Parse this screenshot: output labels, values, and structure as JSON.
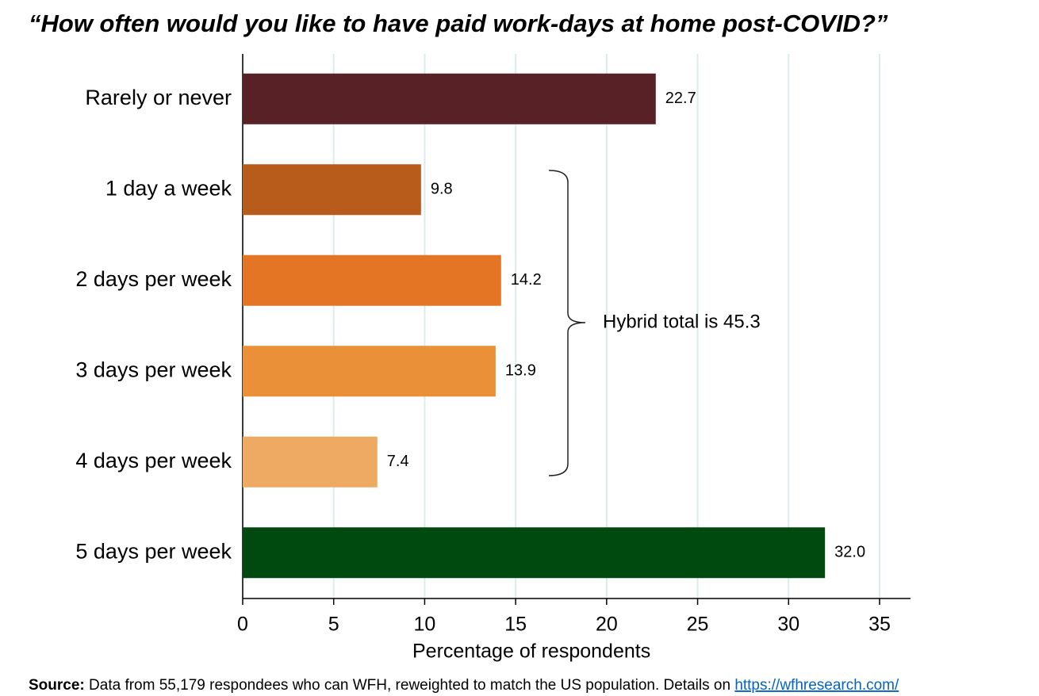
{
  "chart_data": {
    "type": "barh",
    "title": "“How often would you like to have paid work-days at home post-COVID?”",
    "categories": [
      "Rarely or never",
      "1 day a week",
      "2 days per week",
      "3 days per week",
      "4 days per week",
      "5 days per week"
    ],
    "values": [
      22.7,
      9.8,
      14.2,
      13.9,
      7.4,
      32.0
    ],
    "value_labels": [
      "22.7",
      "9.8",
      "14.2",
      "13.9",
      "7.4",
      "32.0"
    ],
    "colors": [
      "#582126",
      "#b85c1b",
      "#e37524",
      "#e99038",
      "#eeaa62",
      "#004a10"
    ],
    "xlabel": "Percentage of respondents",
    "xlim": [
      0,
      36.7
    ],
    "xticks": [
      0,
      5,
      10,
      15,
      20,
      25,
      30,
      35
    ],
    "grid": true,
    "annotation": "Hybrid total is 45.3",
    "source": {
      "label": "Source:",
      "text": "Data from 55,179 respondees who can WFH, reweighted to match the US population. Details on",
      "link": "https://wfhresearch.com/"
    }
  }
}
